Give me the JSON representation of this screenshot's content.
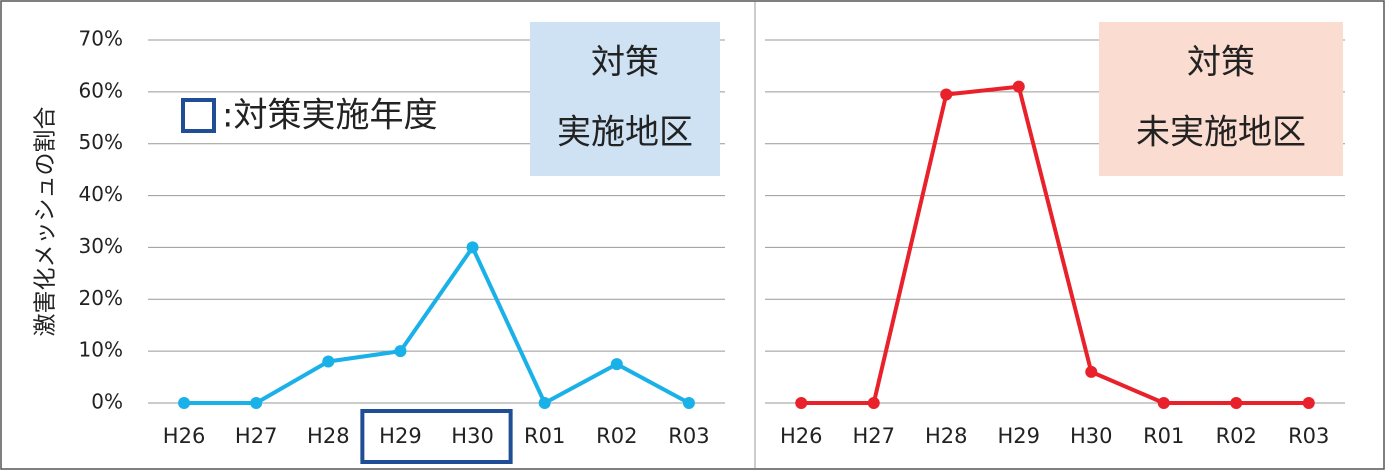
{
  "chart_data": [
    {
      "type": "line",
      "y_label": "激害化メッシュの割合",
      "categories": [
        "H26",
        "H27",
        "H28",
        "H29",
        "H30",
        "R01",
        "R02",
        "R03"
      ],
      "values": [
        0,
        0,
        8,
        10,
        30,
        0,
        7.5,
        0
      ],
      "color": "#1ab0e8",
      "ylim": [
        0,
        70
      ],
      "yticks": [
        {
          "value": 0,
          "label": "0%"
        },
        {
          "value": 10,
          "label": "10%"
        },
        {
          "value": 20,
          "label": "20%"
        },
        {
          "value": 30,
          "label": "30%"
        },
        {
          "value": 40,
          "label": "40%"
        },
        {
          "value": 50,
          "label": "50%"
        },
        {
          "value": 60,
          "label": "60%"
        },
        {
          "value": 70,
          "label": "70%"
        }
      ],
      "grid": true,
      "annotation": [
        "対策",
        "実施地区"
      ],
      "annotation_color": "#cfe2f3",
      "legend_text": ":対策実施年度",
      "highlight": [
        "H29",
        "H30"
      ]
    },
    {
      "type": "line",
      "categories": [
        "H26",
        "H27",
        "H28",
        "H29",
        "H30",
        "R01",
        "R02",
        "R03"
      ],
      "values": [
        0,
        0,
        59.5,
        61,
        6,
        0,
        0,
        0
      ],
      "color": "#e8212b",
      "ylim": [
        0,
        70
      ],
      "yticks": [
        0,
        10,
        20,
        30,
        40,
        50,
        60,
        70
      ],
      "grid": true,
      "annotation": [
        "対策",
        "未実施地区"
      ],
      "annotation_color": "#fbdcd0"
    }
  ]
}
